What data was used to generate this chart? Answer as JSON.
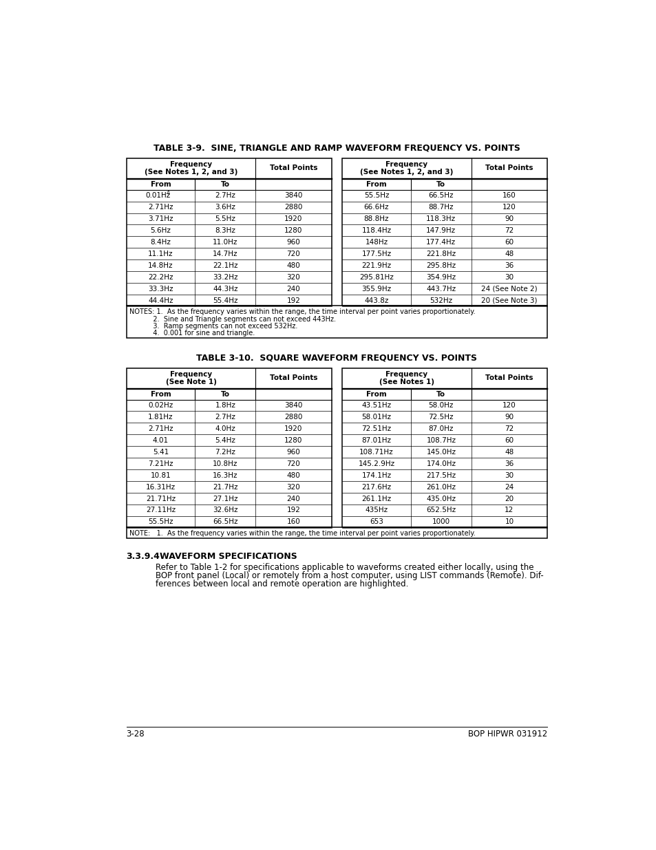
{
  "bg_color": "#ffffff",
  "title1": "TABLE 3-9.  SINE, TRIANGLE AND RAMP WAVEFORM FREQUENCY VS. POINTS",
  "title2": "TABLE 3-10.  SQUARE WAVEFORM FREQUENCY VS. POINTS",
  "t1_left_rows": [
    [
      "0.01Hz",
      "2.7Hz",
      "3840"
    ],
    [
      "2.71Hz",
      "3.6Hz",
      "2880"
    ],
    [
      "3.71Hz",
      "5.5Hz",
      "1920"
    ],
    [
      "5.6Hz",
      "8.3Hz",
      "1280"
    ],
    [
      "8.4Hz",
      "11.0Hz",
      "960"
    ],
    [
      "11.1Hz",
      "14.7Hz",
      "720"
    ],
    [
      "14.8Hz",
      "22.1Hz",
      "480"
    ],
    [
      "22.2Hz",
      "33.2Hz",
      "320"
    ],
    [
      "33.3Hz",
      "44.3Hz",
      "240"
    ],
    [
      "44.4Hz",
      "55.4Hz",
      "192"
    ]
  ],
  "t1_right_rows": [
    [
      "55.5Hz",
      "66.5Hz",
      "160"
    ],
    [
      "66.6Hz",
      "88.7Hz",
      "120"
    ],
    [
      "88.8Hz",
      "118.3Hz",
      "90"
    ],
    [
      "118.4Hz",
      "147.9Hz",
      "72"
    ],
    [
      "148Hz",
      "177.4Hz",
      "60"
    ],
    [
      "177.5Hz",
      "221.8Hz",
      "48"
    ],
    [
      "221.9Hz",
      "295.8Hz",
      "36"
    ],
    [
      "295.81Hz",
      "354.9Hz",
      "30"
    ],
    [
      "355.9Hz",
      "443.7Hz",
      "24 (See Note 2)"
    ],
    [
      "443.8z",
      "532Hz",
      "20 (See Note 3)"
    ]
  ],
  "t1_left_hdr": [
    "Frequency",
    "(See Notes 1, 2, and 3)",
    "Total Points"
  ],
  "t1_right_hdr": [
    "Frequency",
    "(See Notes 1, 2, and 3)",
    "Total Points"
  ],
  "t1_notes": [
    "NOTES: 1.  As the frequency varies within the range, the time interval per point varies proportionately.",
    "           2.  Sine and Triangle segments can not exceed 443Hz.",
    "           3.  Ramp segments can not exceed 532Hz.",
    "           4.  0.001 for sine and triangle."
  ],
  "t2_left_rows": [
    [
      "0.02Hz",
      "1.8Hz",
      "3840"
    ],
    [
      "1.81Hz",
      "2.7Hz",
      "2880"
    ],
    [
      "2.71Hz",
      "4.0Hz",
      "1920"
    ],
    [
      "4.01",
      "5.4Hz",
      "1280"
    ],
    [
      "5.41",
      "7.2Hz",
      "960"
    ],
    [
      "7.21Hz",
      "10.8Hz",
      "720"
    ],
    [
      "10.81",
      "16.3Hz",
      "480"
    ],
    [
      "16.31Hz",
      "21.7Hz",
      "320"
    ],
    [
      "21.71Hz",
      "27.1Hz",
      "240"
    ],
    [
      "27.11Hz",
      "32.6Hz",
      "192"
    ],
    [
      "55.5Hz",
      "66.5Hz",
      "160"
    ]
  ],
  "t2_right_rows": [
    [
      "43.51Hz",
      "58.0Hz",
      "120"
    ],
    [
      "58.01Hz",
      "72.5Hz",
      "90"
    ],
    [
      "72.51Hz",
      "87.0Hz",
      "72"
    ],
    [
      "87.01Hz",
      "108.7Hz",
      "60"
    ],
    [
      "108.71Hz",
      "145.0Hz",
      "48"
    ],
    [
      "145.2.9Hz",
      "174.0Hz",
      "36"
    ],
    [
      "174.1Hz",
      "217.5Hz",
      "30"
    ],
    [
      "217.6Hz",
      "261.0Hz",
      "24"
    ],
    [
      "261.1Hz",
      "435.0Hz",
      "20"
    ],
    [
      "435Hz",
      "652.5Hz",
      "12"
    ],
    [
      "653",
      "1000",
      "10"
    ]
  ],
  "t2_left_hdr": [
    "Frequency",
    "(See Note 1)",
    "Total Points"
  ],
  "t2_right_hdr": [
    "Frequency",
    "(See Notes 1)",
    "Total Points"
  ],
  "t2_notes": [
    "NOTE:   1.  As the frequency varies within the range, the time interval per point varies proportionately."
  ],
  "section_title": "3.3.9.4",
  "section_heading": "WAVEFORM SPECIFICATIONS",
  "section_body_lines": [
    "Refer to Table 1-2 for specifications applicable to waveforms created either locally, using the",
    "BOP front panel (Local) or remotely from a host computer, using LIST commands (Remote). Dif-",
    "ferences between local and remote operation are highlighted."
  ],
  "footer_left": "3-28",
  "footer_right": "BOP HIPWR 031912",
  "t1_first_from_superscript": true
}
